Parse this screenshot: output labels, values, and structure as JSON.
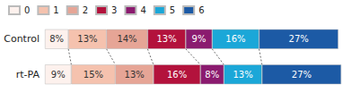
{
  "chart_data": {
    "type": "bar",
    "orientation": "horizontal",
    "stacked": true,
    "data_labels": true,
    "tick_labels": "y",
    "legend": "top-left",
    "categories": [
      "Control",
      "rt-PA"
    ],
    "series": [
      {
        "name": "0",
        "color": "#fdf1ed",
        "values": [
          8,
          9
        ],
        "value_labels": [
          "8%",
          "9%"
        ]
      },
      {
        "name": "1",
        "color": "#f5c2ae",
        "values": [
          13,
          15
        ],
        "value_labels": [
          "13%",
          "15%"
        ]
      },
      {
        "name": "2",
        "color": "#e6a596",
        "values": [
          14,
          13
        ],
        "value_labels": [
          "14%",
          "13%"
        ]
      },
      {
        "name": "3",
        "color": "#b3123c",
        "values": [
          13,
          16
        ],
        "value_labels": [
          "13%",
          "16%"
        ]
      },
      {
        "name": "4",
        "color": "#8b1b6f",
        "values": [
          9,
          8
        ],
        "value_labels": [
          "9%",
          "8%"
        ]
      },
      {
        "name": "5",
        "color": "#1ba7d8",
        "values": [
          16,
          13
        ],
        "value_labels": [
          "16%",
          "13%"
        ]
      },
      {
        "name": "6",
        "color": "#1c5aa5",
        "values": [
          27,
          27
        ],
        "value_labels": [
          "27%",
          "27%"
        ]
      }
    ]
  }
}
